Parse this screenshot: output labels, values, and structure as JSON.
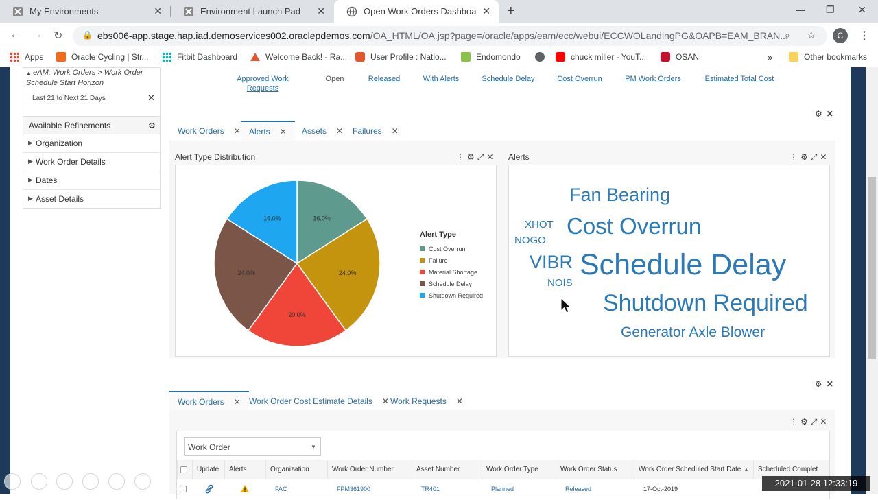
{
  "browser": {
    "tabs": [
      {
        "title": "My Environments",
        "active": false
      },
      {
        "title": "Environment Launch Pad",
        "active": false
      },
      {
        "title": "Open Work Orders Dashboard",
        "active": true
      }
    ],
    "url_host": "ebs006-app.stage.hap.iad.demoservices002.oraclepdemos.com",
    "url_path": "/OA_HTML/OA.jsp?page=/oracle/apps/eam/ecc/webui/ECCWOLandingPG&OAPB=EAM_BRAN...",
    "profile_initial": "C",
    "bookmarks": [
      "Apps",
      "Oracle Cycling | Str...",
      "Fitbit Dashboard",
      "Welcome Back! - Ra...",
      "User Profile : Natio...",
      "Endomondo",
      "",
      "chuck miller - YouT...",
      "OSAN"
    ],
    "bookmarks_more": "»",
    "other_bookmarks": "Other bookmarks"
  },
  "filter": {
    "crumb": "eAM: Work Orders > Work Order Schedule Start Horizon",
    "chip": "Last 21 to Next 21 Days",
    "refinements_title": "Available Refinements",
    "refinements": [
      "Organization",
      "Work Order Details",
      "Dates",
      "Asset Details"
    ]
  },
  "measures": [
    "Approved Work Requests",
    "Open",
    "Released",
    "With Alerts",
    "Schedule Delay",
    "Cost Overrun",
    "PM Work Orders",
    "Estimated Total Cost"
  ],
  "top_tabs": [
    "Work Orders",
    "Alerts",
    "Assets",
    "Failures"
  ],
  "alert_dist": {
    "title": "Alert Type Distribution",
    "chart_data": {
      "type": "pie",
      "legend_title": "Alert Type",
      "legend_position": "right",
      "labels": [
        "Cost Overrun",
        "Failure",
        "Material Shortage",
        "Schedule Delay",
        "Shutdown Required"
      ],
      "values": [
        16.0,
        24.0,
        20.0,
        24.0,
        16.0
      ],
      "value_labels": [
        "16.0%",
        "24.0%",
        "20.0%",
        "24.0%",
        "16.0%"
      ],
      "colors": [
        "#5f9a8e",
        "#c4940e",
        "#f0463a",
        "#7a5548",
        "#1ea7f0"
      ]
    }
  },
  "alerts_cloud": {
    "title": "Alerts",
    "tags": [
      "Fan Bearing",
      "XHOT",
      "NOGO",
      "Cost Overrun",
      "VIBR",
      "NOIS",
      "Schedule Delay",
      "Shutdown Required",
      "Generator Axle Blower"
    ]
  },
  "bottom_tabs": [
    "Work Orders",
    "Work Order Cost Estimate Details",
    "Work Requests"
  ],
  "table": {
    "view_label": "Work Order",
    "columns": [
      "Update",
      "Alerts",
      "Organization",
      "Work Order Number",
      "Asset Number",
      "Work Order Type",
      "Work Order Status",
      "Work Order Scheduled Start Date",
      "Scheduled Complet"
    ],
    "rows": [
      {
        "organization": "FAC",
        "wo_number": "FPM361900",
        "asset": "TR401",
        "type": "Planned",
        "status": "Released",
        "start_date": "17-Oct-2019",
        "complete": ""
      }
    ]
  },
  "timestamp": "2021-01-28  12:33:19",
  "colors": {
    "link": "#2a6ea6",
    "frame": "#1e3a5a",
    "cloud": "#2a7ab8"
  }
}
